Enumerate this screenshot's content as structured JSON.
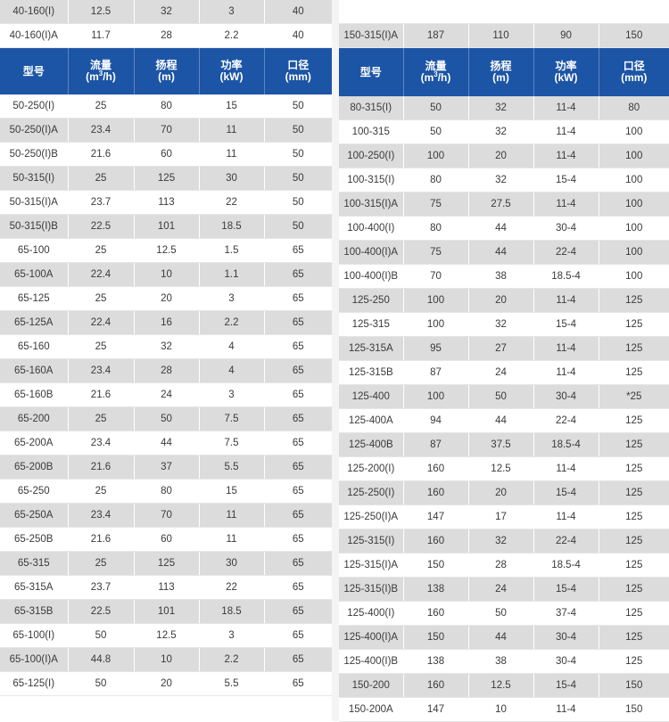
{
  "headers": {
    "model": "型号",
    "flow": "流量",
    "flow_unit_pre": "(m",
    "flow_unit_sup": "3",
    "flow_unit_post": "/h)",
    "head": "扬程",
    "head_unit": "(m)",
    "power": "功率",
    "power_unit": "(kW)",
    "bore": "口径",
    "bore_unit": "(mm)"
  },
  "left": {
    "top_rows": [
      [
        "40-160(I)",
        "12.5",
        "32",
        "3",
        "40"
      ],
      [
        "40-160(I)A",
        "11.7",
        "28",
        "2.2",
        "40"
      ]
    ],
    "rows": [
      [
        "50-250(I)",
        "25",
        "80",
        "15",
        "50"
      ],
      [
        "50-250(I)A",
        "23.4",
        "70",
        "11",
        "50"
      ],
      [
        "50-250(I)B",
        "21.6",
        "60",
        "11",
        "50"
      ],
      [
        "50-315(I)",
        "25",
        "125",
        "30",
        "50"
      ],
      [
        "50-315(I)A",
        "23.7",
        "113",
        "22",
        "50"
      ],
      [
        "50-315(I)B",
        "22.5",
        "101",
        "18.5",
        "50"
      ],
      [
        "65-100",
        "25",
        "12.5",
        "1.5",
        "65"
      ],
      [
        "65-100A",
        "22.4",
        "10",
        "1.1",
        "65"
      ],
      [
        "65-125",
        "25",
        "20",
        "3",
        "65"
      ],
      [
        "65-125A",
        "22.4",
        "16",
        "2.2",
        "65"
      ],
      [
        "65-160",
        "25",
        "32",
        "4",
        "65"
      ],
      [
        "65-160A",
        "23.4",
        "28",
        "4",
        "65"
      ],
      [
        "65-160B",
        "21.6",
        "24",
        "3",
        "65"
      ],
      [
        "65-200",
        "25",
        "50",
        "7.5",
        "65"
      ],
      [
        "65-200A",
        "23.4",
        "44",
        "7.5",
        "65"
      ],
      [
        "65-200B",
        "21.6",
        "37",
        "5.5",
        "65"
      ],
      [
        "65-250",
        "25",
        "80",
        "15",
        "65"
      ],
      [
        "65-250A",
        "23.4",
        "70",
        "11",
        "65"
      ],
      [
        "65-250B",
        "21.6",
        "60",
        "11",
        "65"
      ],
      [
        "65-315",
        "25",
        "125",
        "30",
        "65"
      ],
      [
        "65-315A",
        "23.7",
        "113",
        "22",
        "65"
      ],
      [
        "65-315B",
        "22.5",
        "101",
        "18.5",
        "65"
      ],
      [
        "65-100(I)",
        "50",
        "12.5",
        "3",
        "65"
      ],
      [
        "65-100(I)A",
        "44.8",
        "10",
        "2.2",
        "65"
      ],
      [
        "65-125(I)",
        "50",
        "20",
        "5.5",
        "65"
      ]
    ]
  },
  "right": {
    "top_rows": [
      [
        "150-315(I)A",
        "187",
        "110",
        "90",
        "150"
      ]
    ],
    "rows": [
      [
        "80-315(I)",
        "50",
        "32",
        "11-4",
        "80"
      ],
      [
        "100-315",
        "50",
        "32",
        "11-4",
        "100"
      ],
      [
        "100-250(I)",
        "100",
        "20",
        "11-4",
        "100"
      ],
      [
        "100-315(I)",
        "80",
        "32",
        "15-4",
        "100"
      ],
      [
        "100-315(I)A",
        "75",
        "27.5",
        "11-4",
        "100"
      ],
      [
        "100-400(I)",
        "80",
        "44",
        "30-4",
        "100"
      ],
      [
        "100-400(I)A",
        "75",
        "44",
        "22-4",
        "100"
      ],
      [
        "100-400(I)B",
        "70",
        "38",
        "18.5-4",
        "100"
      ],
      [
        "125-250",
        "100",
        "20",
        "11-4",
        "125"
      ],
      [
        "125-315",
        "100",
        "32",
        "15-4",
        "125"
      ],
      [
        "125-315A",
        "95",
        "27",
        "11-4",
        "125"
      ],
      [
        "125-315B",
        "87",
        "24",
        "11-4",
        "125"
      ],
      [
        "125-400",
        "100",
        "50",
        "30-4",
        "*25"
      ],
      [
        "125-400A",
        "94",
        "44",
        "22-4",
        "125"
      ],
      [
        "125-400B",
        "87",
        "37.5",
        "18.5-4",
        "125"
      ],
      [
        "125-200(I)",
        "160",
        "12.5",
        "11-4",
        "125"
      ],
      [
        "125-250(I)",
        "160",
        "20",
        "15-4",
        "125"
      ],
      [
        "125-250(I)A",
        "147",
        "17",
        "11-4",
        "125"
      ],
      [
        "125-315(I)",
        "160",
        "32",
        "22-4",
        "125"
      ],
      [
        "125-315(I)A",
        "150",
        "28",
        "18.5-4",
        "125"
      ],
      [
        "125-315(I)B",
        "138",
        "24",
        "15-4",
        "125"
      ],
      [
        "125-400(I)",
        "160",
        "50",
        "37-4",
        "125"
      ],
      [
        "125-400(I)A",
        "150",
        "44",
        "30-4",
        "125"
      ],
      [
        "125-400(I)B",
        "138",
        "38",
        "30-4",
        "125"
      ],
      [
        "150-200",
        "160",
        "12.5",
        "15-4",
        "150"
      ],
      [
        "150-200A",
        "147",
        "10",
        "11-4",
        "150"
      ]
    ]
  },
  "colors": {
    "header_bg": "#1d55a6",
    "header_text": "#ffffff",
    "row_shade": "#dcdcdc",
    "row_plain": "#ffffff"
  }
}
